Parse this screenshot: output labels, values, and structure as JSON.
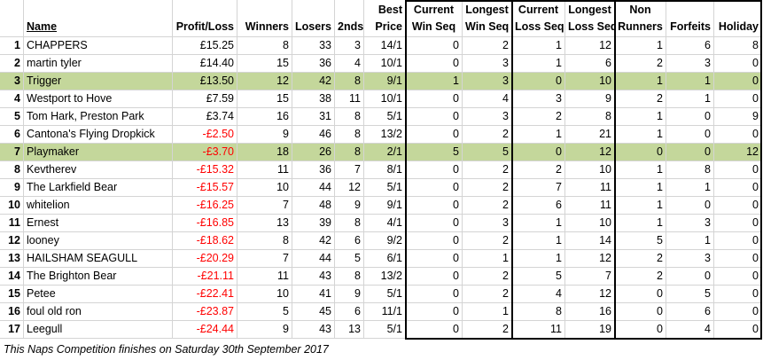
{
  "header": [
    [
      "",
      ""
    ],
    [
      "",
      "Name"
    ],
    [
      "",
      "Profit/Loss"
    ],
    [
      "",
      "Winners"
    ],
    [
      "",
      "Losers"
    ],
    [
      "",
      "2nds"
    ],
    [
      "Best",
      "Price"
    ],
    [
      "Current",
      "Win Seq"
    ],
    [
      "Longest",
      "Win Seq"
    ],
    [
      "Current",
      "Loss Seq"
    ],
    [
      "Longest",
      "Loss Seq"
    ],
    [
      "Non",
      "Runners"
    ],
    [
      "",
      "Forfeits"
    ],
    [
      "",
      "Holiday"
    ]
  ],
  "rows": [
    {
      "cells": [
        1,
        "CHAPPERS",
        "£15.25",
        8,
        33,
        3,
        "14/1",
        0,
        2,
        1,
        12,
        1,
        6,
        8
      ]
    },
    {
      "cells": [
        2,
        "martin tyler",
        "£14.40",
        15,
        36,
        4,
        "10/1",
        0,
        3,
        1,
        6,
        2,
        3,
        0
      ]
    },
    {
      "cells": [
        3,
        "Trigger",
        "£13.50",
        12,
        42,
        8,
        "9/1",
        1,
        3,
        0,
        10,
        1,
        1,
        0
      ],
      "highlight": true
    },
    {
      "cells": [
        4,
        "Westport to Hove",
        "£7.59",
        15,
        38,
        11,
        "10/1",
        0,
        4,
        3,
        9,
        2,
        1,
        0
      ]
    },
    {
      "cells": [
        5,
        "Tom Hark, Preston Park",
        "£3.74",
        16,
        31,
        8,
        "5/1",
        0,
        3,
        2,
        8,
        1,
        0,
        9
      ]
    },
    {
      "cells": [
        6,
        "Cantona's Flying Dropkick",
        "-£2.50",
        9,
        46,
        8,
        "13/2",
        0,
        2,
        1,
        21,
        1,
        0,
        0
      ]
    },
    {
      "cells": [
        7,
        "Playmaker",
        "-£3.70",
        18,
        26,
        8,
        "2/1",
        5,
        5,
        0,
        12,
        0,
        0,
        12
      ],
      "highlight": true
    },
    {
      "cells": [
        8,
        "Kevtherev",
        "-£15.32",
        11,
        36,
        7,
        "8/1",
        0,
        2,
        2,
        10,
        1,
        8,
        0
      ]
    },
    {
      "cells": [
        9,
        "The Larkfield Bear",
        "-£15.57",
        10,
        44,
        12,
        "5/1",
        0,
        2,
        7,
        11,
        1,
        1,
        0
      ]
    },
    {
      "cells": [
        10,
        "whitelion",
        "-£16.25",
        7,
        48,
        9,
        "9/1",
        0,
        2,
        6,
        11,
        1,
        0,
        0
      ]
    },
    {
      "cells": [
        11,
        "Ernest",
        "-£16.85",
        13,
        39,
        8,
        "4/1",
        0,
        3,
        1,
        10,
        1,
        3,
        0
      ]
    },
    {
      "cells": [
        12,
        "looney",
        "-£18.62",
        8,
        42,
        6,
        "9/2",
        0,
        2,
        1,
        14,
        5,
        1,
        0
      ]
    },
    {
      "cells": [
        13,
        "HAILSHAM SEAGULL",
        "-£20.29",
        7,
        44,
        5,
        "6/1",
        0,
        1,
        1,
        12,
        2,
        3,
        0
      ]
    },
    {
      "cells": [
        14,
        "The Brighton Bear",
        "-£21.11",
        11,
        43,
        8,
        "13/2",
        0,
        2,
        5,
        7,
        2,
        0,
        0
      ]
    },
    {
      "cells": [
        15,
        "Petee",
        "-£22.41",
        10,
        41,
        9,
        "5/1",
        0,
        2,
        4,
        12,
        0,
        5,
        0
      ]
    },
    {
      "cells": [
        16,
        "foul old ron",
        "-£23.87",
        5,
        45,
        6,
        "11/1",
        0,
        1,
        8,
        16,
        0,
        6,
        0
      ]
    },
    {
      "cells": [
        17,
        "Leegull",
        "-£24.44",
        9,
        43,
        13,
        "5/1",
        0,
        2,
        11,
        19,
        0,
        4,
        0
      ]
    }
  ],
  "footer": "This Naps Competition finishes on Saturday 30th September 2017"
}
